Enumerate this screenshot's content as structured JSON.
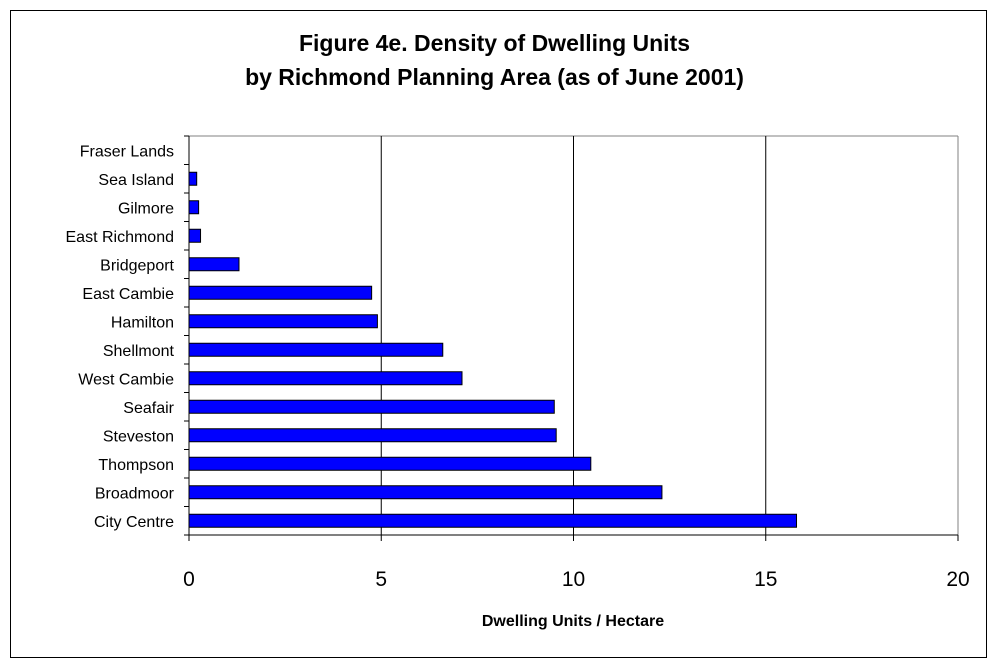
{
  "chart_data": {
    "type": "bar",
    "orientation": "horizontal",
    "title": [
      "Figure 4e. Density of Dwelling Units",
      "by Richmond Planning Area (as of June 2001)"
    ],
    "xlabel": "Dwelling Units / Hectare",
    "ylabel": "",
    "categories": [
      "Fraser Lands",
      "Sea Island",
      "Gilmore",
      "East Richmond",
      "Bridgeport",
      "East Cambie",
      "Hamilton",
      "Shellmont",
      "West Cambie",
      "Seafair",
      "Steveston",
      "Thompson",
      "Broadmoor",
      "City Centre"
    ],
    "values": [
      0,
      0.2,
      0.25,
      0.3,
      1.3,
      4.75,
      4.9,
      6.6,
      7.1,
      9.5,
      9.55,
      10.45,
      12.3,
      15.8
    ],
    "xlim": [
      0,
      20
    ],
    "xticks": [
      0,
      5,
      10,
      15,
      20
    ],
    "grid": true,
    "legend": "none",
    "bar_color": "#0000ff",
    "bar_edge_color": "#000000"
  }
}
